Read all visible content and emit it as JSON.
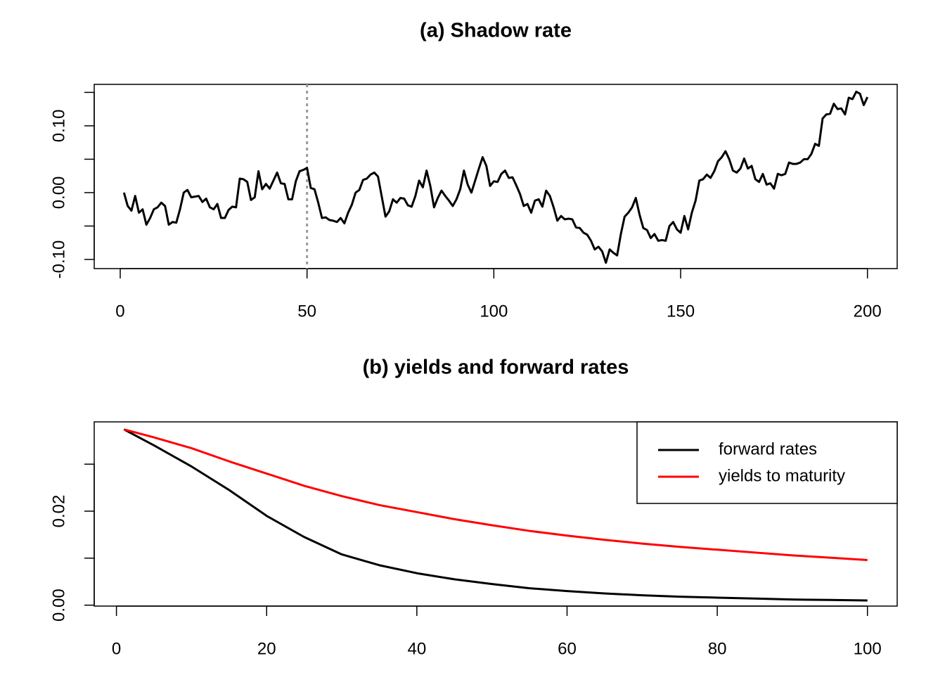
{
  "chart_data": [
    {
      "type": "line",
      "title": "(a) Shadow rate",
      "x": [
        1,
        2,
        3,
        4,
        5,
        6,
        7,
        8,
        9,
        10,
        11,
        12,
        13,
        14,
        15,
        16,
        17,
        18,
        19,
        20,
        21,
        22,
        23,
        24,
        25,
        26,
        27,
        28,
        29,
        30,
        31,
        32,
        33,
        34,
        35,
        36,
        37,
        38,
        39,
        40,
        41,
        42,
        43,
        44,
        45,
        46,
        47,
        48,
        49,
        50,
        51,
        52,
        53,
        54,
        55,
        56,
        57,
        58,
        59,
        60,
        61,
        62,
        63,
        64,
        65,
        66,
        67,
        68,
        69,
        70,
        71,
        72,
        73,
        74,
        75,
        76,
        77,
        78,
        79,
        80,
        81,
        82,
        83,
        84,
        85,
        86,
        87,
        88,
        89,
        90,
        91,
        92,
        93,
        94,
        95,
        96,
        97,
        98,
        99,
        100,
        101,
        102,
        103,
        104,
        105,
        106,
        107,
        108,
        109,
        110,
        111,
        112,
        113,
        114,
        115,
        116,
        117,
        118,
        119,
        120,
        121,
        122,
        123,
        124,
        125,
        126,
        127,
        128,
        129,
        130,
        131,
        132,
        133,
        134,
        135,
        136,
        137,
        138,
        139,
        140,
        141,
        142,
        143,
        144,
        145,
        146,
        147,
        148,
        149,
        150,
        151,
        152,
        153,
        154,
        155,
        156,
        157,
        158,
        159,
        160,
        161,
        162,
        163,
        164,
        165,
        166,
        167,
        168,
        169,
        170,
        171,
        172,
        173,
        174,
        175,
        176,
        177,
        178,
        179,
        180,
        181,
        182,
        183,
        184,
        185,
        186,
        187,
        188,
        189,
        190,
        191,
        192,
        193,
        194,
        195,
        196,
        197,
        198,
        199,
        200
      ],
      "series": [
        {
          "color": "#000000",
          "values": [
            0.0,
            -0.02,
            -0.027,
            -0.005,
            -0.03,
            -0.025,
            -0.048,
            -0.038,
            -0.025,
            -0.022,
            -0.015,
            -0.02,
            -0.048,
            -0.044,
            -0.045,
            -0.025,
            0.0,
            0.004,
            -0.007,
            -0.006,
            -0.005,
            -0.014,
            -0.009,
            -0.022,
            -0.025,
            -0.017,
            -0.038,
            -0.038,
            -0.026,
            -0.021,
            -0.022,
            0.021,
            0.02,
            0.016,
            -0.011,
            -0.007,
            0.032,
            0.005,
            0.013,
            0.006,
            0.018,
            0.03,
            0.014,
            0.013,
            -0.01,
            -0.01,
            0.017,
            0.032,
            0.034,
            0.037,
            0.007,
            0.005,
            -0.015,
            -0.038,
            -0.037,
            -0.041,
            -0.042,
            -0.044,
            -0.038,
            -0.046,
            -0.03,
            -0.018,
            0.0,
            0.004,
            0.019,
            0.021,
            0.027,
            0.03,
            0.024,
            -0.006,
            -0.036,
            -0.028,
            -0.01,
            -0.015,
            -0.008,
            -0.009,
            -0.019,
            -0.021,
            -0.005,
            0.018,
            0.008,
            0.033,
            0.01,
            -0.022,
            -0.008,
            0.003,
            -0.005,
            -0.012,
            -0.02,
            -0.01,
            0.005,
            0.033,
            0.012,
            0.0,
            0.018,
            0.036,
            0.053,
            0.04,
            0.01,
            0.017,
            0.016,
            0.028,
            0.033,
            0.022,
            0.023,
            0.011,
            -0.002,
            -0.02,
            -0.017,
            -0.03,
            -0.012,
            -0.01,
            -0.021,
            0.003,
            -0.005,
            -0.022,
            -0.042,
            -0.035,
            -0.04,
            -0.039,
            -0.04,
            -0.052,
            -0.053,
            -0.06,
            -0.063,
            -0.072,
            -0.085,
            -0.081,
            -0.088,
            -0.105,
            -0.085,
            -0.09,
            -0.094,
            -0.062,
            -0.036,
            -0.03,
            -0.022,
            -0.008,
            -0.033,
            -0.053,
            -0.056,
            -0.068,
            -0.062,
            -0.072,
            -0.071,
            -0.072,
            -0.05,
            -0.044,
            -0.055,
            -0.06,
            -0.035,
            -0.055,
            -0.03,
            -0.012,
            0.018,
            0.02,
            0.027,
            0.022,
            0.032,
            0.047,
            0.053,
            0.062,
            0.05,
            0.033,
            0.03,
            0.036,
            0.051,
            0.036,
            0.04,
            0.02,
            0.016,
            0.028,
            0.012,
            0.014,
            0.006,
            0.028,
            0.026,
            0.028,
            0.045,
            0.043,
            0.043,
            0.045,
            0.05,
            0.05,
            0.058,
            0.073,
            0.07,
            0.111,
            0.117,
            0.118,
            0.133,
            0.125,
            0.126,
            0.117,
            0.142,
            0.14,
            0.151,
            0.148,
            0.131,
            0.143
          ]
        }
      ],
      "vlines": [
        50
      ],
      "xlim": [
        -6.96,
        207.96
      ],
      "xticks": [
        0,
        50,
        100,
        150,
        200
      ],
      "ylim": [
        -0.1137,
        0.162
      ],
      "yticks": [
        {
          "value": -0.1,
          "label": "-0.10"
        },
        {
          "value": -0.05,
          "label": null
        },
        {
          "value": 0,
          "label": "0.00"
        },
        {
          "value": 0.05,
          "label": null
        },
        {
          "value": 0.1,
          "label": "0.10"
        },
        {
          "value": 0.15,
          "label": null
        }
      ]
    },
    {
      "type": "line",
      "title": "(b) yields and forward rates",
      "x": [
        1,
        5,
        10,
        15,
        20,
        25,
        30,
        35,
        40,
        45,
        50,
        55,
        60,
        65,
        70,
        75,
        80,
        85,
        90,
        95,
        100
      ],
      "series": [
        {
          "name": "forward rates",
          "color": "#000000",
          "values": [
            0.0374,
            0.034,
            0.0295,
            0.0245,
            0.019,
            0.0145,
            0.0108,
            0.0085,
            0.0068,
            0.0055,
            0.0045,
            0.0036,
            0.003,
            0.0025,
            0.0021,
            0.0018,
            0.0016,
            0.0014,
            0.0012,
            0.0011,
            0.001
          ]
        },
        {
          "name": "yields to maturity",
          "color": "#ff0000",
          "values": [
            0.0374,
            0.0357,
            0.0334,
            0.0306,
            0.028,
            0.0254,
            0.0232,
            0.0213,
            0.0198,
            0.0183,
            0.017,
            0.0158,
            0.0148,
            0.0139,
            0.0131,
            0.0124,
            0.0118,
            0.0112,
            0.0106,
            0.0101,
            0.0096
          ]
        }
      ],
      "legend": "topright",
      "xlim": [
        -2.96,
        103.96
      ],
      "xticks": [
        0,
        20,
        40,
        60,
        80,
        100
      ],
      "ylim": [
        -0.0002,
        0.039
      ],
      "yticks": [
        {
          "value": 0,
          "label": "0.00"
        },
        {
          "value": 0.01,
          "label": null
        },
        {
          "value": 0.02,
          "label": "0.02"
        },
        {
          "value": 0.03,
          "label": null
        }
      ]
    }
  ]
}
